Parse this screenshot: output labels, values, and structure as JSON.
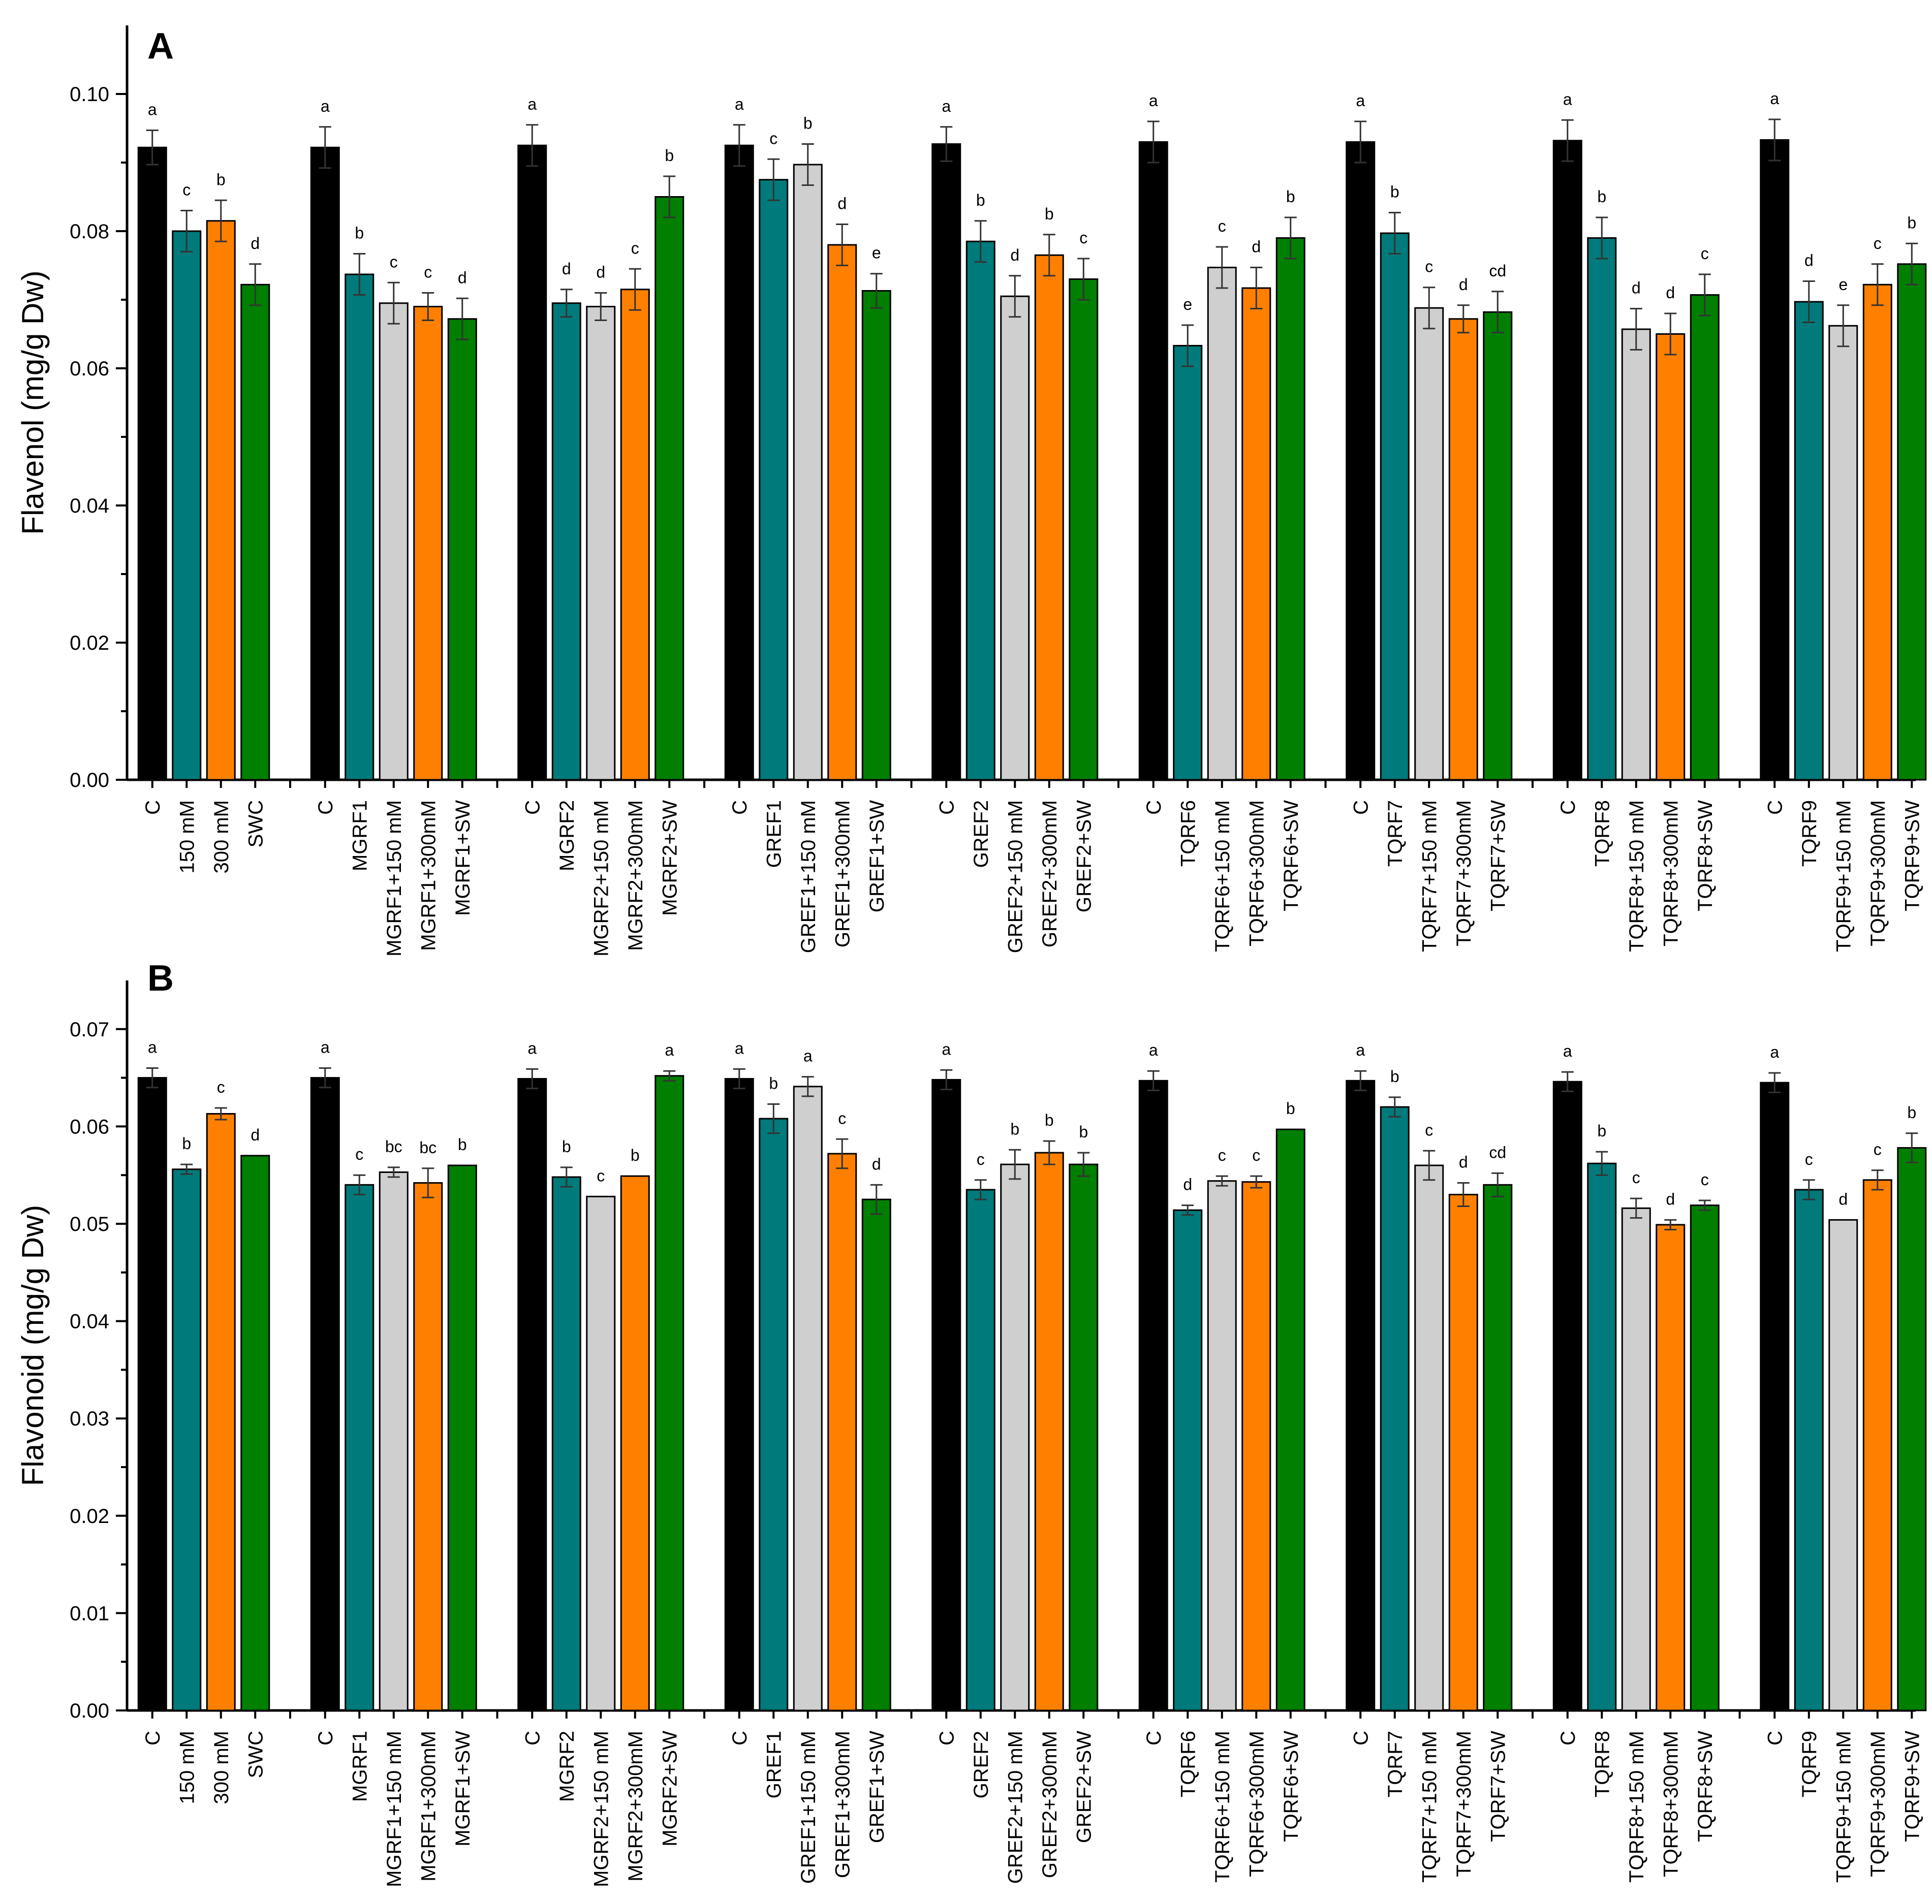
{
  "colors": {
    "black": "#000000",
    "teal": "#007A7A",
    "gray": "#CFCFCF",
    "orange": "#FF8000",
    "green": "#007F00"
  },
  "chart_data": [
    {
      "type": "bar",
      "panel": "A",
      "ylabel": "Flavenol (mg/g Dw)",
      "ylim": [
        0,
        0.11
      ],
      "yticks": [
        "0.00",
        "0.02",
        "0.04",
        "0.06",
        "0.08",
        "0.10"
      ],
      "groups": [
        {
          "bars": [
            {
              "label": "C",
              "value": 0.0922,
              "err": 0.0025,
              "letter": "a",
              "color": "black"
            },
            {
              "label": "150 mM",
              "value": 0.08,
              "err": 0.003,
              "letter": "c",
              "color": "teal"
            },
            {
              "label": "300 mM",
              "value": 0.0815,
              "err": 0.003,
              "letter": "b",
              "color": "orange"
            },
            {
              "label": "SWC",
              "value": 0.0722,
              "err": 0.003,
              "letter": "d",
              "color": "green"
            }
          ]
        },
        {
          "bars": [
            {
              "label": "C",
              "value": 0.0922,
              "err": 0.003,
              "letter": "a",
              "color": "black"
            },
            {
              "label": "MGRF1",
              "value": 0.0737,
              "err": 0.003,
              "letter": "b",
              "color": "teal"
            },
            {
              "label": "MGRF1+150 mM",
              "value": 0.0695,
              "err": 0.003,
              "letter": "c",
              "color": "gray"
            },
            {
              "label": "MGRF1+300mM",
              "value": 0.069,
              "err": 0.002,
              "letter": "c",
              "color": "orange"
            },
            {
              "label": "MGRF1+SW",
              "value": 0.0672,
              "err": 0.003,
              "letter": "d",
              "color": "green"
            }
          ]
        },
        {
          "bars": [
            {
              "label": "C",
              "value": 0.0925,
              "err": 0.003,
              "letter": "a",
              "color": "black"
            },
            {
              "label": "MGRF2",
              "value": 0.0695,
              "err": 0.002,
              "letter": "d",
              "color": "teal"
            },
            {
              "label": "MGRF2+150 mM",
              "value": 0.069,
              "err": 0.002,
              "letter": "d",
              "color": "gray"
            },
            {
              "label": "MGRF2+300mM",
              "value": 0.0715,
              "err": 0.003,
              "letter": "c",
              "color": "orange"
            },
            {
              "label": "MGRF2+SW",
              "value": 0.085,
              "err": 0.003,
              "letter": "b",
              "color": "green"
            }
          ]
        },
        {
          "bars": [
            {
              "label": "C",
              "value": 0.0925,
              "err": 0.003,
              "letter": "a",
              "color": "black"
            },
            {
              "label": "GREF1",
              "value": 0.0875,
              "err": 0.003,
              "letter": "c",
              "color": "teal"
            },
            {
              "label": "GREF1+150 mM",
              "value": 0.0897,
              "err": 0.003,
              "letter": "b",
              "color": "gray"
            },
            {
              "label": "GREF1+300mM",
              "value": 0.078,
              "err": 0.003,
              "letter": "d",
              "color": "orange"
            },
            {
              "label": "GREF1+SW",
              "value": 0.0713,
              "err": 0.0025,
              "letter": "e",
              "color": "green"
            }
          ]
        },
        {
          "bars": [
            {
              "label": "C",
              "value": 0.0927,
              "err": 0.0025,
              "letter": "a",
              "color": "black"
            },
            {
              "label": "GREF2",
              "value": 0.0785,
              "err": 0.003,
              "letter": "b",
              "color": "teal"
            },
            {
              "label": "GREF2+150 mM",
              "value": 0.0705,
              "err": 0.003,
              "letter": "d",
              "color": "gray"
            },
            {
              "label": "GREF2+300mM",
              "value": 0.0765,
              "err": 0.003,
              "letter": "b",
              "color": "orange"
            },
            {
              "label": "GREF2+SW",
              "value": 0.073,
              "err": 0.003,
              "letter": "c",
              "color": "green"
            }
          ]
        },
        {
          "bars": [
            {
              "label": "C",
              "value": 0.093,
              "err": 0.003,
              "letter": "a",
              "color": "black"
            },
            {
              "label": "TQRF6",
              "value": 0.0633,
              "err": 0.003,
              "letter": "e",
              "color": "teal"
            },
            {
              "label": "TQRF6+150 mM",
              "value": 0.0747,
              "err": 0.003,
              "letter": "c",
              "color": "gray"
            },
            {
              "label": "TQRF6+300mM",
              "value": 0.0717,
              "err": 0.003,
              "letter": "d",
              "color": "orange"
            },
            {
              "label": "TQRF6+SW",
              "value": 0.079,
              "err": 0.003,
              "letter": "b",
              "color": "green"
            }
          ]
        },
        {
          "bars": [
            {
              "label": "C",
              "value": 0.093,
              "err": 0.003,
              "letter": "a",
              "color": "black"
            },
            {
              "label": "TQRF7",
              "value": 0.0797,
              "err": 0.003,
              "letter": "b",
              "color": "teal"
            },
            {
              "label": "TQRF7+150 mM",
              "value": 0.0688,
              "err": 0.003,
              "letter": "c",
              "color": "gray"
            },
            {
              "label": "TQRF7+300mM",
              "value": 0.0672,
              "err": 0.002,
              "letter": "d",
              "color": "orange"
            },
            {
              "label": "TQRF7+SW",
              "value": 0.0682,
              "err": 0.003,
              "letter": "cd",
              "color": "green"
            }
          ]
        },
        {
          "bars": [
            {
              "label": "C",
              "value": 0.0932,
              "err": 0.003,
              "letter": "a",
              "color": "black"
            },
            {
              "label": "TQRF8",
              "value": 0.079,
              "err": 0.003,
              "letter": "b",
              "color": "teal"
            },
            {
              "label": "TQRF8+150 mM",
              "value": 0.0657,
              "err": 0.003,
              "letter": "d",
              "color": "gray"
            },
            {
              "label": "TQRF8+300mM",
              "value": 0.065,
              "err": 0.003,
              "letter": "d",
              "color": "orange"
            },
            {
              "label": "TQRF8+SW",
              "value": 0.0707,
              "err": 0.003,
              "letter": "c",
              "color": "green"
            }
          ]
        },
        {
          "bars": [
            {
              "label": "C",
              "value": 0.0933,
              "err": 0.003,
              "letter": "a",
              "color": "black"
            },
            {
              "label": "TQRF9",
              "value": 0.0697,
              "err": 0.003,
              "letter": "d",
              "color": "teal"
            },
            {
              "label": "TQRF9+150 mM",
              "value": 0.0662,
              "err": 0.003,
              "letter": "e",
              "color": "gray"
            },
            {
              "label": "TQRF9+300mM",
              "value": 0.0722,
              "err": 0.003,
              "letter": "c",
              "color": "orange"
            },
            {
              "label": "TQRF9+SW",
              "value": 0.0752,
              "err": 0.003,
              "letter": "b",
              "color": "green"
            }
          ]
        }
      ]
    },
    {
      "type": "bar",
      "panel": "B",
      "ylabel": "Flavonoid (mg/g Dw)",
      "ylim": [
        0,
        0.075
      ],
      "yticks": [
        "0.00",
        "0.01",
        "0.02",
        "0.03",
        "0.04",
        "0.05",
        "0.06",
        "0.07"
      ],
      "groups": [
        {
          "bars": [
            {
              "label": "C",
              "value": 0.065,
              "err": 0.001,
              "letter": "a",
              "color": "black"
            },
            {
              "label": "150 mM",
              "value": 0.0556,
              "err": 0.0005,
              "letter": "b",
              "color": "teal"
            },
            {
              "label": "300 mM",
              "value": 0.0613,
              "err": 0.0006,
              "letter": "c",
              "color": "orange"
            },
            {
              "label": "SWC",
              "value": 0.057,
              "err": 0.0,
              "letter": "d",
              "color": "green"
            }
          ]
        },
        {
          "bars": [
            {
              "label": "C",
              "value": 0.065,
              "err": 0.001,
              "letter": "a",
              "color": "black"
            },
            {
              "label": "MGRF1",
              "value": 0.054,
              "err": 0.001,
              "letter": "c",
              "color": "teal"
            },
            {
              "label": "MGRF1+150 mM",
              "value": 0.0553,
              "err": 0.0005,
              "letter": "bc",
              "color": "gray"
            },
            {
              "label": "MGRF1+300mM",
              "value": 0.0542,
              "err": 0.0015,
              "letter": "bc",
              "color": "orange"
            },
            {
              "label": "MGRF1+SW",
              "value": 0.056,
              "err": 0.0,
              "letter": "b",
              "color": "green"
            }
          ]
        },
        {
          "bars": [
            {
              "label": "C",
              "value": 0.0649,
              "err": 0.001,
              "letter": "a",
              "color": "black"
            },
            {
              "label": "MGRF2",
              "value": 0.0548,
              "err": 0.001,
              "letter": "b",
              "color": "teal"
            },
            {
              "label": "MGRF2+150 mM",
              "value": 0.0528,
              "err": 0.0,
              "letter": "c",
              "color": "gray"
            },
            {
              "label": "MGRF2+300mM",
              "value": 0.0549,
              "err": 0.0,
              "letter": "b",
              "color": "orange"
            },
            {
              "label": "MGRF2+SW",
              "value": 0.0652,
              "err": 0.0005,
              "letter": "a",
              "color": "green"
            }
          ]
        },
        {
          "bars": [
            {
              "label": "C",
              "value": 0.0649,
              "err": 0.001,
              "letter": "a",
              "color": "black"
            },
            {
              "label": "GREF1",
              "value": 0.0608,
              "err": 0.0015,
              "letter": "b",
              "color": "teal"
            },
            {
              "label": "GREF1+150 mM",
              "value": 0.0641,
              "err": 0.001,
              "letter": "a",
              "color": "gray"
            },
            {
              "label": "GREF1+300mM",
              "value": 0.0572,
              "err": 0.0015,
              "letter": "c",
              "color": "orange"
            },
            {
              "label": "GREF1+SW",
              "value": 0.0525,
              "err": 0.0015,
              "letter": "d",
              "color": "green"
            }
          ]
        },
        {
          "bars": [
            {
              "label": "C",
              "value": 0.0648,
              "err": 0.001,
              "letter": "a",
              "color": "black"
            },
            {
              "label": "GREF2",
              "value": 0.0535,
              "err": 0.001,
              "letter": "c",
              "color": "teal"
            },
            {
              "label": "GREF2+150 mM",
              "value": 0.0561,
              "err": 0.0015,
              "letter": "b",
              "color": "gray"
            },
            {
              "label": "GREF2+300mM",
              "value": 0.0573,
              "err": 0.0012,
              "letter": "b",
              "color": "orange"
            },
            {
              "label": "GREF2+SW",
              "value": 0.0561,
              "err": 0.0012,
              "letter": "b",
              "color": "green"
            }
          ]
        },
        {
          "bars": [
            {
              "label": "C",
              "value": 0.0647,
              "err": 0.001,
              "letter": "a",
              "color": "black"
            },
            {
              "label": "TQRF6",
              "value": 0.0514,
              "err": 0.0005,
              "letter": "d",
              "color": "teal"
            },
            {
              "label": "TQRF6+150 mM",
              "value": 0.0544,
              "err": 0.0005,
              "letter": "c",
              "color": "gray"
            },
            {
              "label": "TQRF6+300mM",
              "value": 0.0543,
              "err": 0.0006,
              "letter": "c",
              "color": "orange"
            },
            {
              "label": "TQRF6+SW",
              "value": 0.0597,
              "err": 0.0,
              "letter": "b",
              "color": "green"
            }
          ]
        },
        {
          "bars": [
            {
              "label": "C",
              "value": 0.0647,
              "err": 0.001,
              "letter": "a",
              "color": "black"
            },
            {
              "label": "TQRF7",
              "value": 0.062,
              "err": 0.001,
              "letter": "b",
              "color": "teal"
            },
            {
              "label": "TQRF7+150 mM",
              "value": 0.056,
              "err": 0.0015,
              "letter": "c",
              "color": "gray"
            },
            {
              "label": "TQRF7+300mM",
              "value": 0.053,
              "err": 0.0012,
              "letter": "d",
              "color": "orange"
            },
            {
              "label": "TQRF7+SW",
              "value": 0.054,
              "err": 0.0012,
              "letter": "cd",
              "color": "green"
            }
          ]
        },
        {
          "bars": [
            {
              "label": "C",
              "value": 0.0646,
              "err": 0.001,
              "letter": "a",
              "color": "black"
            },
            {
              "label": "TQRF8",
              "value": 0.0562,
              "err": 0.0012,
              "letter": "b",
              "color": "teal"
            },
            {
              "label": "TQRF8+150 mM",
              "value": 0.0516,
              "err": 0.001,
              "letter": "c",
              "color": "gray"
            },
            {
              "label": "TQRF8+300mM",
              "value": 0.0499,
              "err": 0.0005,
              "letter": "d",
              "color": "orange"
            },
            {
              "label": "TQRF8+SW",
              "value": 0.0519,
              "err": 0.0005,
              "letter": "c",
              "color": "green"
            }
          ]
        },
        {
          "bars": [
            {
              "label": "C",
              "value": 0.0645,
              "err": 0.001,
              "letter": "a",
              "color": "black"
            },
            {
              "label": "TQRF9",
              "value": 0.0535,
              "err": 0.001,
              "letter": "c",
              "color": "teal"
            },
            {
              "label": "TQRF9+150 mM",
              "value": 0.0504,
              "err": 0.0,
              "letter": "d",
              "color": "gray"
            },
            {
              "label": "TQRF9+300mM",
              "value": 0.0545,
              "err": 0.001,
              "letter": "c",
              "color": "orange"
            },
            {
              "label": "TQRF9+SW",
              "value": 0.0578,
              "err": 0.0015,
              "letter": "b",
              "color": "green"
            }
          ]
        }
      ]
    }
  ]
}
